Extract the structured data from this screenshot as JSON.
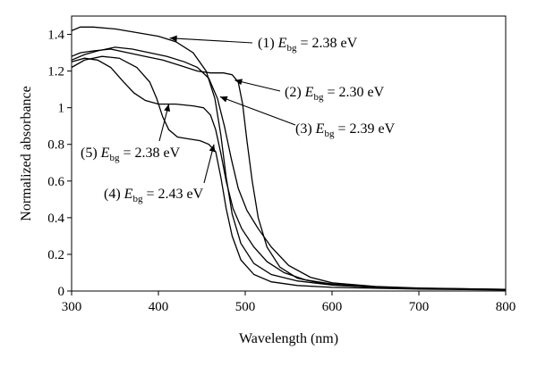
{
  "chart_data": {
    "type": "line",
    "xlabel": "Wavelength (nm)",
    "ylabel": "Normalized absorbance",
    "xlim": [
      300,
      800
    ],
    "ylim": [
      0,
      1.5
    ],
    "x_ticks": [
      300,
      400,
      500,
      600,
      700,
      800
    ],
    "y_ticks": [
      0,
      0.2,
      0.4,
      0.6,
      0.8,
      1,
      1.2,
      1.4
    ],
    "x_tick_labels": [
      "300",
      "400",
      "500",
      "600",
      "700",
      "800"
    ],
    "y_tick_labels": [
      "0",
      "0.2",
      "0.4",
      "0.6",
      "0.8",
      "1",
      "1.2",
      "1.4"
    ],
    "grid": false,
    "series": [
      {
        "id": "1",
        "points": [
          [
            300,
            1.42
          ],
          [
            310,
            1.44
          ],
          [
            325,
            1.44
          ],
          [
            350,
            1.43
          ],
          [
            375,
            1.41
          ],
          [
            400,
            1.39
          ],
          [
            420,
            1.36
          ],
          [
            440,
            1.3
          ],
          [
            455,
            1.2
          ],
          [
            465,
            1.05
          ],
          [
            472,
            0.85
          ],
          [
            478,
            0.62
          ],
          [
            485,
            0.42
          ],
          [
            495,
            0.26
          ],
          [
            510,
            0.15
          ],
          [
            530,
            0.09
          ],
          [
            560,
            0.055
          ],
          [
            600,
            0.032
          ],
          [
            650,
            0.02
          ],
          [
            700,
            0.014
          ],
          [
            750,
            0.01
          ],
          [
            800,
            0.008
          ]
        ]
      },
      {
        "id": "2",
        "points": [
          [
            300,
            1.28
          ],
          [
            310,
            1.3
          ],
          [
            325,
            1.31
          ],
          [
            345,
            1.32
          ],
          [
            365,
            1.3
          ],
          [
            385,
            1.28
          ],
          [
            405,
            1.26
          ],
          [
            425,
            1.23
          ],
          [
            445,
            1.2
          ],
          [
            460,
            1.19
          ],
          [
            475,
            1.19
          ],
          [
            485,
            1.18
          ],
          [
            492,
            1.14
          ],
          [
            497,
            1.02
          ],
          [
            502,
            0.82
          ],
          [
            508,
            0.6
          ],
          [
            515,
            0.4
          ],
          [
            525,
            0.24
          ],
          [
            540,
            0.13
          ],
          [
            560,
            0.07
          ],
          [
            590,
            0.04
          ],
          [
            630,
            0.025
          ],
          [
            700,
            0.015
          ],
          [
            800,
            0.009
          ]
        ]
      },
      {
        "id": "3",
        "points": [
          [
            300,
            1.26
          ],
          [
            315,
            1.29
          ],
          [
            330,
            1.31
          ],
          [
            350,
            1.33
          ],
          [
            370,
            1.32
          ],
          [
            390,
            1.3
          ],
          [
            410,
            1.28
          ],
          [
            430,
            1.25
          ],
          [
            445,
            1.22
          ],
          [
            458,
            1.16
          ],
          [
            468,
            1.05
          ],
          [
            476,
            0.9
          ],
          [
            484,
            0.72
          ],
          [
            492,
            0.56
          ],
          [
            502,
            0.44
          ],
          [
            515,
            0.34
          ],
          [
            530,
            0.24
          ],
          [
            550,
            0.14
          ],
          [
            575,
            0.075
          ],
          [
            600,
            0.045
          ],
          [
            650,
            0.025
          ],
          [
            700,
            0.016
          ],
          [
            800,
            0.009
          ]
        ]
      },
      {
        "id": "4",
        "points": [
          [
            300,
            1.22
          ],
          [
            315,
            1.26
          ],
          [
            335,
            1.28
          ],
          [
            355,
            1.27
          ],
          [
            375,
            1.22
          ],
          [
            390,
            1.14
          ],
          [
            398,
            1.05
          ],
          [
            405,
            0.95
          ],
          [
            412,
            0.88
          ],
          [
            422,
            0.84
          ],
          [
            435,
            0.83
          ],
          [
            448,
            0.82
          ],
          [
            458,
            0.8
          ],
          [
            466,
            0.76
          ],
          [
            472,
            0.62
          ],
          [
            478,
            0.45
          ],
          [
            485,
            0.3
          ],
          [
            495,
            0.17
          ],
          [
            510,
            0.09
          ],
          [
            530,
            0.05
          ],
          [
            560,
            0.03
          ],
          [
            600,
            0.02
          ],
          [
            700,
            0.01
          ],
          [
            800,
            0.006
          ]
        ]
      },
      {
        "id": "5",
        "points": [
          [
            300,
            1.25
          ],
          [
            315,
            1.27
          ],
          [
            330,
            1.26
          ],
          [
            345,
            1.22
          ],
          [
            360,
            1.14
          ],
          [
            372,
            1.08
          ],
          [
            385,
            1.04
          ],
          [
            400,
            1.02
          ],
          [
            420,
            1.02
          ],
          [
            440,
            1.01
          ],
          [
            452,
            1.0
          ],
          [
            460,
            0.96
          ],
          [
            466,
            0.88
          ],
          [
            472,
            0.75
          ],
          [
            478,
            0.6
          ],
          [
            486,
            0.45
          ],
          [
            496,
            0.34
          ],
          [
            510,
            0.24
          ],
          [
            525,
            0.16
          ],
          [
            545,
            0.1
          ],
          [
            570,
            0.06
          ],
          [
            600,
            0.038
          ],
          [
            650,
            0.022
          ],
          [
            700,
            0.014
          ],
          [
            800,
            0.008
          ]
        ]
      }
    ],
    "annotations": [
      {
        "id": "1",
        "prefix": "(1) ",
        "var": "E",
        "sub": "bg",
        "value": " = 2.38 eV",
        "target": [
          413,
          1.38
        ]
      },
      {
        "id": "2",
        "prefix": "(2) ",
        "var": "E",
        "sub": "bg",
        "value": " = 2.30 eV",
        "target": [
          488,
          1.15
        ]
      },
      {
        "id": "3",
        "prefix": "(3) ",
        "var": "E",
        "sub": "bg",
        "value": " = 2.39 eV",
        "target": [
          471,
          1.06
        ]
      },
      {
        "id": "5",
        "prefix": "(5) ",
        "var": "E",
        "sub": "bg",
        "value": " = 2.38 eV",
        "target": [
          412,
          1.02
        ]
      },
      {
        "id": "4",
        "prefix": "(4) ",
        "var": "E",
        "sub": "bg",
        "value": " = 2.43 eV",
        "target": [
          464,
          0.8
        ]
      }
    ]
  }
}
